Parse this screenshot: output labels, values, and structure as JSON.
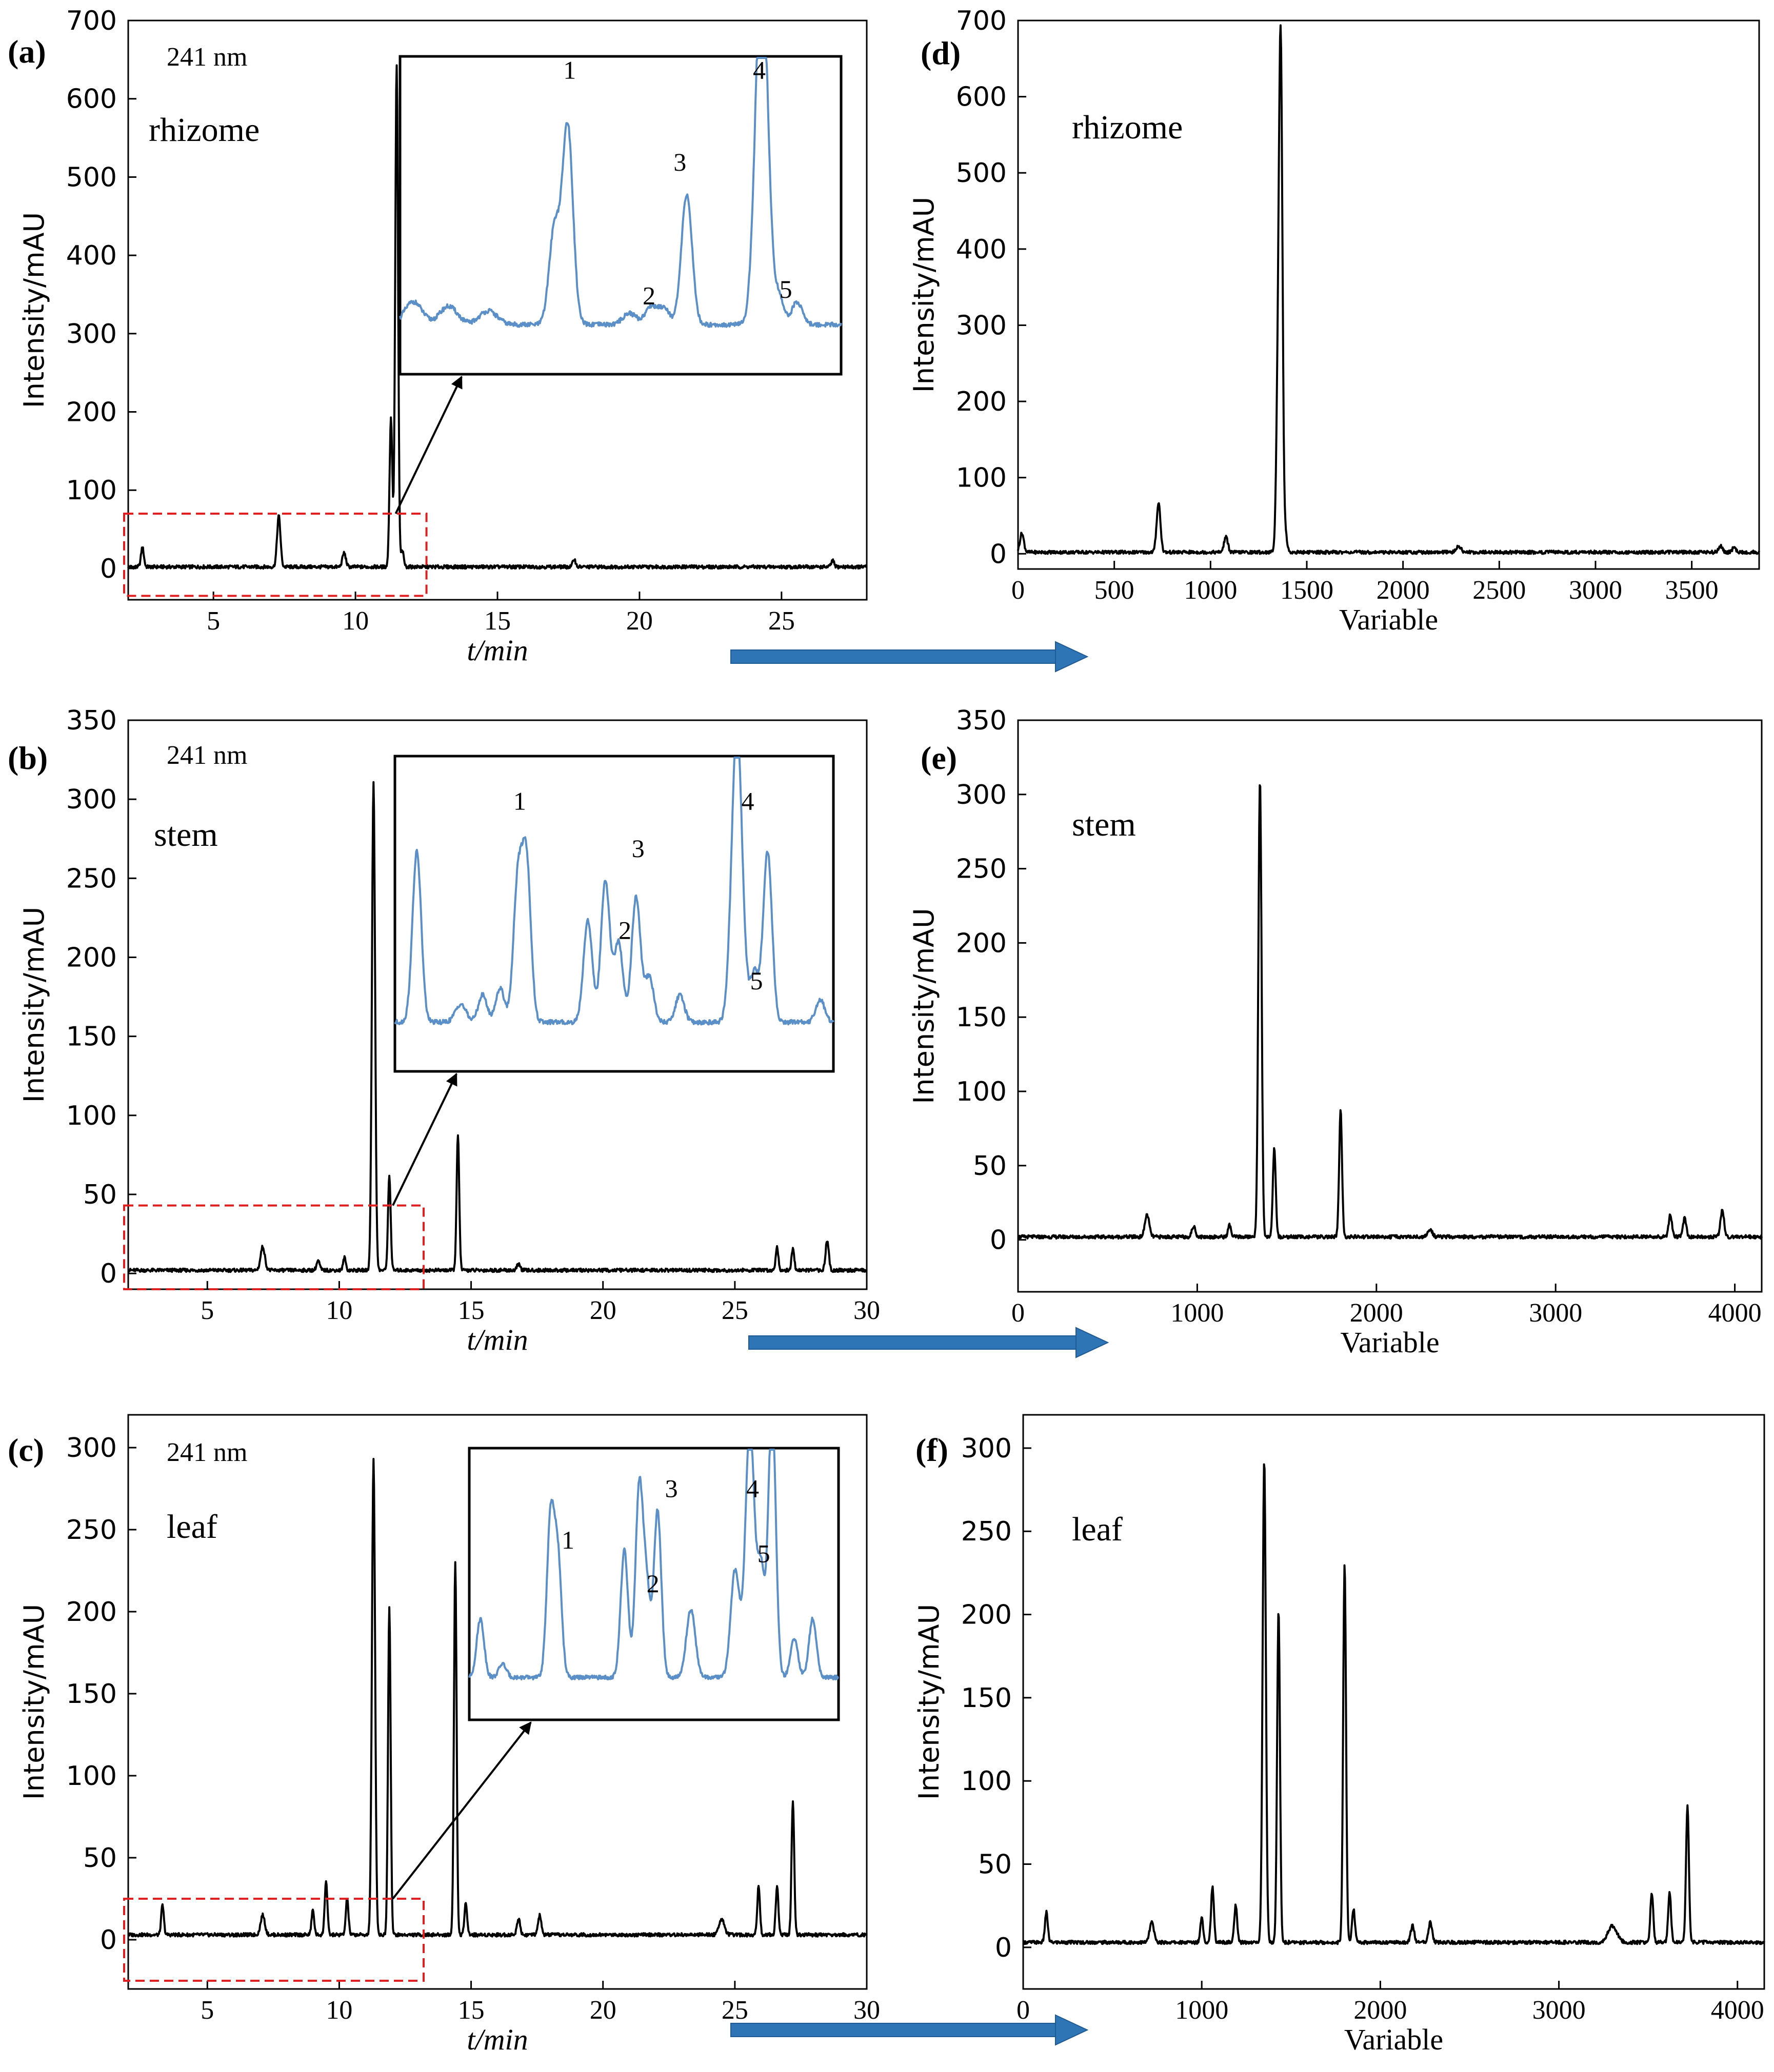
{
  "chart_data": [
    {
      "id": "a",
      "type": "line",
      "panel_label": "(a)",
      "sample": "rhizome",
      "wavelength": "241 nm",
      "xlabel": "t/min",
      "ylabel": "Intensity/mAU",
      "xlim": [
        2,
        28
      ],
      "ylim": [
        -40,
        700
      ],
      "xticks": [
        "5",
        "10",
        "15",
        "20",
        "25"
      ],
      "yticks": [
        "0",
        "100",
        "200",
        "300",
        "400",
        "500",
        "600",
        "700"
      ],
      "baseline": 2,
      "peaks": [
        [
          2.5,
          25,
          0.05
        ],
        [
          7.3,
          65,
          0.06
        ],
        [
          9.6,
          18,
          0.06
        ],
        [
          11.25,
          190,
          0.05
        ],
        [
          11.45,
          640,
          0.05
        ],
        [
          11.65,
          20,
          0.05
        ],
        [
          17.7,
          10,
          0.05
        ],
        [
          26.8,
          8,
          0.05
        ]
      ],
      "zoom_box_x": [
        2,
        12.5
      ],
      "zoom_box_y": [
        -35,
        70
      ],
      "inset": {
        "trace": "chromatogram 2–12.5 min (zoomed)",
        "peak_labels": [
          "1",
          "2",
          "3",
          "4",
          "5"
        ],
        "peaks": [
          [
            0.03,
            0.1,
            0.02
          ],
          [
            0.11,
            0.08,
            0.02
          ],
          [
            0.2,
            0.06,
            0.02
          ],
          [
            0.35,
            0.42,
            0.012
          ],
          [
            0.38,
            0.87,
            0.012
          ],
          [
            0.52,
            0.05,
            0.015
          ],
          [
            0.57,
            0.08,
            0.014
          ],
          [
            0.6,
            0.07,
            0.012
          ],
          [
            0.65,
            0.57,
            0.012
          ],
          [
            0.82,
            1.6,
            0.014
          ],
          [
            0.86,
            0.12,
            0.01
          ],
          [
            0.9,
            0.1,
            0.012
          ]
        ],
        "label_positions": [
          [
            0.37,
            0.93
          ],
          [
            0.55,
            0.22
          ],
          [
            0.62,
            0.64
          ],
          [
            0.8,
            0.93
          ],
          [
            0.86,
            0.24
          ]
        ]
      }
    },
    {
      "id": "b",
      "type": "line",
      "panel_label": "(b)",
      "sample": "stem",
      "wavelength": "241 nm",
      "xlabel": "t/min",
      "ylabel": "Intensity/mAU",
      "xlim": [
        2,
        30
      ],
      "ylim": [
        -10,
        350
      ],
      "xticks": [
        "5",
        "10",
        "15",
        "20",
        "25",
        "30"
      ],
      "yticks": [
        "0",
        "50",
        "100",
        "150",
        "200",
        "250",
        "300",
        "350"
      ],
      "baseline": 2,
      "peaks": [
        [
          7.1,
          15,
          0.08
        ],
        [
          9.2,
          6,
          0.06
        ],
        [
          10.2,
          8,
          0.05
        ],
        [
          11.3,
          308,
          0.06
        ],
        [
          11.9,
          60,
          0.05
        ],
        [
          14.5,
          85,
          0.05
        ],
        [
          16.8,
          4,
          0.06
        ],
        [
          26.6,
          15,
          0.05
        ],
        [
          27.2,
          14,
          0.05
        ],
        [
          28.5,
          19,
          0.06
        ]
      ],
      "zoom_box_x": [
        2,
        13.2
      ],
      "zoom_box_y": [
        -10,
        43
      ],
      "inset": {
        "trace": "chromatogram 2–13.2 min (zoomed)",
        "peak_labels": [
          "1",
          "2",
          "3",
          "4",
          "5"
        ],
        "peaks": [
          [
            0.05,
            0.75,
            0.01
          ],
          [
            0.15,
            0.08,
            0.012
          ],
          [
            0.2,
            0.12,
            0.01
          ],
          [
            0.24,
            0.15,
            0.01
          ],
          [
            0.28,
            0.6,
            0.01
          ],
          [
            0.3,
            0.7,
            0.01
          ],
          [
            0.44,
            0.45,
            0.01
          ],
          [
            0.48,
            0.62,
            0.01
          ],
          [
            0.51,
            0.35,
            0.01
          ],
          [
            0.55,
            0.55,
            0.01
          ],
          [
            0.58,
            0.2,
            0.01
          ],
          [
            0.65,
            0.12,
            0.01
          ],
          [
            0.78,
            1.3,
            0.012
          ],
          [
            0.82,
            0.22,
            0.01
          ],
          [
            0.85,
            0.75,
            0.01
          ],
          [
            0.97,
            0.1,
            0.01
          ]
        ],
        "label_positions": [
          [
            0.27,
            0.83
          ],
          [
            0.51,
            0.42
          ],
          [
            0.54,
            0.68
          ],
          [
            0.79,
            0.83
          ],
          [
            0.81,
            0.26
          ]
        ]
      }
    },
    {
      "id": "c",
      "type": "line",
      "panel_label": "(c)",
      "sample": "leaf",
      "wavelength": "241 nm",
      "xlabel": "t/min",
      "ylabel": "Intensity/mAU",
      "xlim": [
        2,
        30
      ],
      "ylim": [
        -30,
        320
      ],
      "xticks": [
        "5",
        "10",
        "15",
        "20",
        "25",
        "30"
      ],
      "yticks": [
        "0",
        "50",
        "100",
        "150",
        "200",
        "250",
        "300"
      ],
      "baseline": 3,
      "peaks": [
        [
          3.3,
          18,
          0.05
        ],
        [
          7.1,
          12,
          0.08
        ],
        [
          9.0,
          15,
          0.05
        ],
        [
          9.5,
          33,
          0.05
        ],
        [
          10.3,
          22,
          0.05
        ],
        [
          11.3,
          290,
          0.06
        ],
        [
          11.9,
          200,
          0.05
        ],
        [
          14.4,
          228,
          0.05
        ],
        [
          14.8,
          20,
          0.05
        ],
        [
          16.8,
          10,
          0.06
        ],
        [
          17.6,
          12,
          0.06
        ],
        [
          24.5,
          10,
          0.1
        ],
        [
          25.9,
          30,
          0.05
        ],
        [
          26.6,
          30,
          0.05
        ],
        [
          27.2,
          82,
          0.05
        ]
      ],
      "zoom_box_x": [
        2,
        13.2
      ],
      "zoom_box_y": [
        -25,
        25
      ],
      "inset": {
        "trace": "chromatogram 2–13.2 min (zoomed)",
        "peak_labels": [
          "1",
          "2",
          "3",
          "4",
          "5"
        ],
        "peaks": [
          [
            0.03,
            0.3,
            0.01
          ],
          [
            0.09,
            0.07,
            0.01
          ],
          [
            0.22,
            0.8,
            0.01
          ],
          [
            0.24,
            0.6,
            0.01
          ],
          [
            0.42,
            0.65,
            0.01
          ],
          [
            0.46,
            0.95,
            0.01
          ],
          [
            0.48,
            0.45,
            0.01
          ],
          [
            0.51,
            0.85,
            0.01
          ],
          [
            0.6,
            0.35,
            0.012
          ],
          [
            0.72,
            0.55,
            0.012
          ],
          [
            0.76,
            1.3,
            0.012
          ],
          [
            0.79,
            0.55,
            0.01
          ],
          [
            0.82,
            1.4,
            0.01
          ],
          [
            0.88,
            0.2,
            0.01
          ],
          [
            0.93,
            0.3,
            0.01
          ]
        ],
        "label_positions": [
          [
            0.25,
            0.63
          ],
          [
            0.48,
            0.47
          ],
          [
            0.53,
            0.82
          ],
          [
            0.75,
            0.82
          ],
          [
            0.78,
            0.58
          ]
        ]
      }
    },
    {
      "id": "d",
      "type": "line",
      "panel_label": "(d)",
      "sample": "rhizome",
      "xlabel": "Variable",
      "ylabel": "Intensity/mAU",
      "xlim": [
        0,
        3850
      ],
      "ylim": [
        -20,
        700
      ],
      "xticks": [
        "0",
        "500",
        "1000",
        "1500",
        "2000",
        "2500",
        "3000",
        "3500"
      ],
      "yticks": [
        "0",
        "100",
        "200",
        "300",
        "400",
        "500",
        "600",
        "700"
      ],
      "baseline": 2,
      "peaks": [
        [
          20,
          25,
          10
        ],
        [
          730,
          65,
          10
        ],
        [
          1080,
          20,
          10
        ],
        [
          1350,
          190,
          9
        ],
        [
          1365,
          640,
          9
        ],
        [
          1390,
          22,
          8
        ],
        [
          2290,
          8,
          12
        ],
        [
          3650,
          8,
          10
        ],
        [
          3720,
          6,
          10
        ]
      ]
    },
    {
      "id": "e",
      "type": "line",
      "panel_label": "(e)",
      "sample": "stem",
      "xlabel": "Variable",
      "ylabel": "Intensity/mAU",
      "xlim": [
        0,
        4150
      ],
      "ylim": [
        -35,
        350
      ],
      "xticks": [
        "0",
        "1000",
        "2000",
        "3000",
        "4000"
      ],
      "yticks": [
        "0",
        "50",
        "100",
        "150",
        "200",
        "250",
        "300",
        "350"
      ],
      "baseline": 2,
      "peaks": [
        [
          720,
          15,
          12
        ],
        [
          980,
          7,
          10
        ],
        [
          1180,
          8,
          8
        ],
        [
          1350,
          308,
          9
        ],
        [
          1430,
          60,
          8
        ],
        [
          1800,
          85,
          8
        ],
        [
          2300,
          5,
          12
        ],
        [
          3640,
          15,
          9
        ],
        [
          3720,
          13,
          9
        ],
        [
          3930,
          18,
          10
        ]
      ]
    },
    {
      "id": "f",
      "type": "line",
      "panel_label": "(f)",
      "sample": "leaf",
      "xlabel": "Variable",
      "ylabel": "Intensity/mAU",
      "xlim": [
        0,
        4150
      ],
      "ylim": [
        -25,
        320
      ],
      "xticks": [
        "0",
        "1000",
        "2000",
        "3000",
        "4000"
      ],
      "yticks": [
        "0",
        "50",
        "100",
        "150",
        "200",
        "250",
        "300"
      ],
      "baseline": 3,
      "peaks": [
        [
          130,
          18,
          8
        ],
        [
          720,
          12,
          12
        ],
        [
          1000,
          15,
          8
        ],
        [
          1060,
          33,
          8
        ],
        [
          1190,
          22,
          8
        ],
        [
          1350,
          290,
          9
        ],
        [
          1430,
          200,
          8
        ],
        [
          1800,
          228,
          8
        ],
        [
          1850,
          20,
          8
        ],
        [
          2180,
          10,
          10
        ],
        [
          2280,
          12,
          10
        ],
        [
          3300,
          10,
          25
        ],
        [
          3520,
          30,
          8
        ],
        [
          3620,
          30,
          8
        ],
        [
          3720,
          82,
          8
        ]
      ]
    }
  ]
}
